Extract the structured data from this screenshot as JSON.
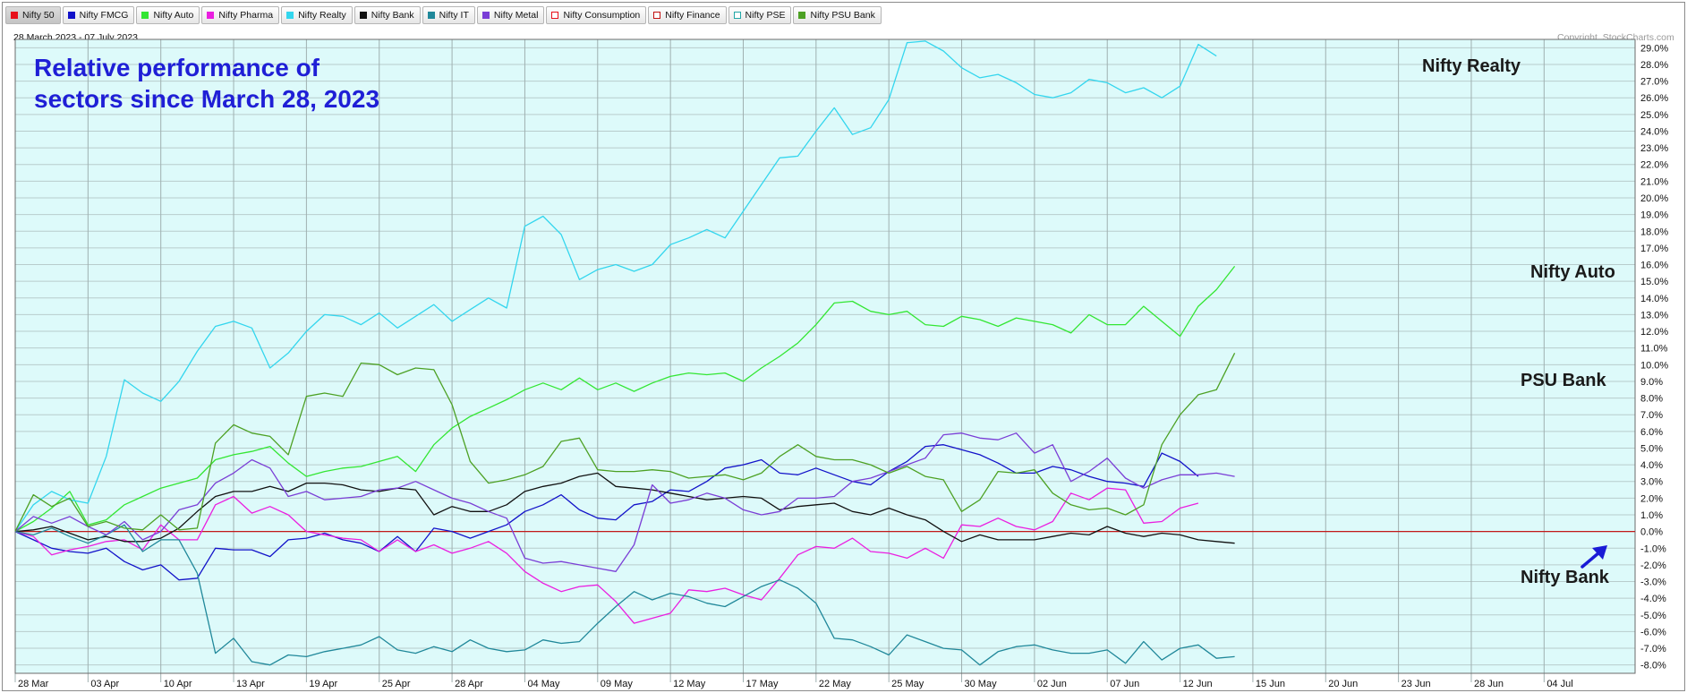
{
  "legend": [
    {
      "label": "Nifty 50",
      "color": "#e8101a",
      "style": "filled",
      "active": true
    },
    {
      "label": "Nifty FMCG",
      "color": "#1212c9",
      "style": "filled",
      "active": false
    },
    {
      "label": "Nifty Auto",
      "color": "#33e633",
      "style": "filled",
      "active": false
    },
    {
      "label": "Nifty Pharma",
      "color": "#ea1fe0",
      "style": "filled",
      "active": false
    },
    {
      "label": "Nifty Realty",
      "color": "#33d6ee",
      "style": "filled",
      "active": false
    },
    {
      "label": "Nifty Bank",
      "color": "#111111",
      "style": "filled",
      "active": false
    },
    {
      "label": "Nifty IT",
      "color": "#20889a",
      "style": "filled",
      "active": false
    },
    {
      "label": "Nifty Metal",
      "color": "#7a3ed6",
      "style": "filled",
      "active": false
    },
    {
      "label": "Nifty Consumption",
      "color": "#e8101a",
      "style": "outline",
      "active": false
    },
    {
      "label": "Nifty Finance",
      "color": "#c21010",
      "style": "outline",
      "active": false
    },
    {
      "label": "Nifty PSE",
      "color": "#20a6a6",
      "style": "outline",
      "active": false
    },
    {
      "label": "Nifty PSU Bank",
      "color": "#4da124",
      "style": "filled",
      "active": false
    }
  ],
  "date_range": "28 March 2023 - 07 July 2023",
  "copyright": "Copyright, StockCharts.com",
  "title_line1": "Relative performance of",
  "title_line2": "sectors since March 28, 2023",
  "annotations": {
    "realty": "Nifty Realty",
    "auto": "Nifty Auto",
    "psu": "PSU Bank",
    "bank": "Nifty Bank"
  },
  "colors": {
    "plot_background": "#ddfafa",
    "grid": "#b8cccc",
    "zero_line": "#c21a1a",
    "title": "#1f1fd6",
    "arrow": "#1a1ad6"
  },
  "chart_data": {
    "type": "line",
    "title": "Relative performance of sectors since March 28, 2023",
    "ylim": [
      -8.5,
      29.5
    ],
    "y_tick_step": 1.0,
    "y_tick_suffix": "%",
    "grid": true,
    "x_tick_labels": [
      "28 Mar",
      "03 Apr",
      "10 Apr",
      "13 Apr",
      "19 Apr",
      "25 Apr",
      "28 Apr",
      "04 May",
      "09 May",
      "12 May",
      "17 May",
      "22 May",
      "25 May",
      "30 May",
      "02 Jun",
      "07 Jun",
      "12 Jun",
      "15 Jun",
      "20 Jun",
      "23 Jun",
      "28 Jun",
      "04 Jul"
    ],
    "x_tick_index": [
      0,
      4,
      8,
      12,
      16,
      20,
      24,
      28,
      32,
      36,
      40,
      44,
      48,
      52,
      56,
      60,
      64,
      68,
      72,
      76,
      80,
      84
    ],
    "series": [
      {
        "name": "Nifty 50",
        "color": "#c21a1a",
        "values": [
          0,
          0,
          0,
          0,
          0,
          0,
          0,
          0,
          0,
          0,
          0,
          0,
          0,
          0,
          0,
          0,
          0,
          0,
          0,
          0,
          0,
          0,
          0,
          0,
          0,
          0,
          0,
          0,
          0,
          0,
          0,
          0,
          0,
          0,
          0,
          0,
          0,
          0,
          0,
          0,
          0,
          0,
          0,
          0,
          0,
          0,
          0,
          0,
          0,
          0,
          0,
          0,
          0,
          0,
          0,
          0,
          0,
          0,
          0,
          0,
          0,
          0,
          0,
          0,
          0,
          0,
          0,
          0,
          0,
          0,
          0,
          0,
          0,
          0,
          0,
          0,
          0,
          0,
          0,
          0,
          0,
          0,
          0,
          0,
          0,
          0,
          0,
          0,
          0,
          0
        ]
      },
      {
        "name": "Nifty FMCG",
        "color": "#1212c9",
        "values": [
          0,
          -0.5,
          -1.0,
          -1.2,
          -1.3,
          -1.0,
          -1.8,
          -2.3,
          -2.0,
          -2.9,
          -2.8,
          -1.0,
          -1.1,
          -1.1,
          -1.5,
          -0.5,
          -0.4,
          -0.1,
          -0.5,
          -0.7,
          -1.2,
          -0.3,
          -1.2,
          0.2,
          0.0,
          -0.4,
          0.0,
          0.4,
          1.2,
          1.6,
          2.2,
          1.3,
          0.8,
          0.7,
          1.6,
          1.8,
          2.5,
          2.4,
          3.0,
          3.8,
          4.0,
          4.3,
          3.5,
          3.4,
          3.8,
          3.4,
          3.0,
          2.8,
          3.6,
          4.2,
          5.1,
          5.2,
          4.9,
          4.6,
          4.1,
          3.5,
          3.5,
          3.9,
          3.7,
          3.3,
          3.0,
          2.9,
          2.7,
          4.7,
          4.2,
          3.3
        ]
      },
      {
        "name": "Nifty Auto",
        "color": "#33e633",
        "values": [
          0,
          0.6,
          1.4,
          2.4,
          0.4,
          0.7,
          1.6,
          2.1,
          2.6,
          2.9,
          3.2,
          4.3,
          4.6,
          4.8,
          5.1,
          4.1,
          3.3,
          3.6,
          3.8,
          3.9,
          4.2,
          4.5,
          3.6,
          5.2,
          6.2,
          6.9,
          7.4,
          7.9,
          8.5,
          8.9,
          8.5,
          9.2,
          8.5,
          8.9,
          8.4,
          8.9,
          9.3,
          9.5,
          9.4,
          9.5,
          9.0,
          9.8,
          10.5,
          11.3,
          12.4,
          13.7,
          13.8,
          13.2,
          13.0,
          13.2,
          12.4,
          12.3,
          12.9,
          12.7,
          12.3,
          12.8,
          12.6,
          12.4,
          11.9,
          13.0,
          12.4,
          12.4,
          13.5,
          12.6,
          11.7,
          13.5,
          14.5,
          15.9
        ]
      },
      {
        "name": "Nifty Pharma",
        "color": "#ea1fe0",
        "values": [
          0,
          -0.3,
          -1.4,
          -1.1,
          -0.9,
          -0.6,
          -0.5,
          -1.1,
          0.4,
          -0.5,
          -0.5,
          1.6,
          2.1,
          1.1,
          1.5,
          1.0,
          0.0,
          -0.2,
          -0.4,
          -0.5,
          -1.2,
          -0.5,
          -1.2,
          -0.8,
          -1.3,
          -1.0,
          -0.6,
          -1.3,
          -2.4,
          -3.1,
          -3.6,
          -3.3,
          -3.2,
          -4.2,
          -5.5,
          -5.2,
          -4.9,
          -3.5,
          -3.6,
          -3.4,
          -3.8,
          -4.1,
          -2.8,
          -1.4,
          -0.9,
          -1.0,
          -0.4,
          -1.2,
          -1.3,
          -1.6,
          -1.0,
          -1.6,
          0.4,
          0.3,
          0.8,
          0.3,
          0.1,
          0.6,
          2.3,
          1.9,
          2.6,
          2.5,
          0.5,
          0.6,
          1.4,
          1.7
        ]
      },
      {
        "name": "Nifty Realty",
        "color": "#33d6ee",
        "values": [
          0,
          1.6,
          2.4,
          1.9,
          1.7,
          4.5,
          9.1,
          8.3,
          7.8,
          9.0,
          10.8,
          12.3,
          12.6,
          12.2,
          9.8,
          10.7,
          12.0,
          13.0,
          12.9,
          12.4,
          13.1,
          12.2,
          12.9,
          13.6,
          12.6,
          13.3,
          14.0,
          13.4,
          18.3,
          18.9,
          17.8,
          15.1,
          15.7,
          16.0,
          15.6,
          16.0,
          17.2,
          17.6,
          18.1,
          17.6,
          19.2,
          20.8,
          22.4,
          22.5,
          24.0,
          25.4,
          23.8,
          24.2,
          25.9,
          29.3,
          29.4,
          28.8,
          27.8,
          27.2,
          27.4,
          26.9,
          26.2,
          26.0,
          26.3,
          27.1,
          26.9,
          26.3,
          26.6,
          26.0,
          26.7,
          29.2,
          28.5
        ]
      },
      {
        "name": "Nifty Bank",
        "color": "#111111",
        "values": [
          0,
          0.1,
          0.3,
          -0.1,
          -0.5,
          -0.3,
          -0.6,
          -0.6,
          -0.4,
          0.2,
          1.2,
          2.1,
          2.4,
          2.4,
          2.7,
          2.4,
          2.9,
          2.9,
          2.8,
          2.5,
          2.4,
          2.6,
          2.5,
          1.0,
          1.5,
          1.2,
          1.2,
          1.6,
          2.4,
          2.7,
          2.9,
          3.3,
          3.5,
          2.7,
          2.6,
          2.5,
          2.3,
          2.1,
          1.9,
          2.0,
          2.1,
          2.0,
          1.3,
          1.5,
          1.6,
          1.7,
          1.2,
          1.0,
          1.4,
          1.0,
          0.7,
          0.0,
          -0.6,
          -0.2,
          -0.5,
          -0.5,
          -0.5,
          -0.3,
          -0.1,
          -0.2,
          0.3,
          -0.1,
          -0.3,
          -0.1,
          -0.2,
          -0.5,
          -0.6,
          -0.7
        ]
      },
      {
        "name": "Nifty IT",
        "color": "#20889a",
        "values": [
          0,
          -0.2,
          0.2,
          -0.3,
          -0.7,
          -0.2,
          0.4,
          -1.2,
          -0.5,
          -0.5,
          -2.5,
          -7.3,
          -6.4,
          -7.8,
          -8.0,
          -7.4,
          -7.5,
          -7.2,
          -7.0,
          -6.8,
          -6.3,
          -7.1,
          -7.3,
          -6.9,
          -7.2,
          -6.5,
          -7.0,
          -7.2,
          -7.1,
          -6.5,
          -6.7,
          -6.6,
          -5.5,
          -4.5,
          -3.6,
          -4.1,
          -3.7,
          -3.9,
          -4.3,
          -4.5,
          -3.9,
          -3.3,
          -2.9,
          -3.4,
          -4.3,
          -6.4,
          -6.5,
          -6.9,
          -7.4,
          -6.2,
          -6.6,
          -7.0,
          -7.1,
          -8.0,
          -7.2,
          -6.9,
          -6.8,
          -7.1,
          -7.3,
          -7.3,
          -7.1,
          -7.9,
          -6.6,
          -7.7,
          -7.0,
          -6.8,
          -7.6,
          -7.5
        ]
      },
      {
        "name": "Nifty Metal",
        "color": "#7a3ed6",
        "values": [
          0,
          0.9,
          0.5,
          0.9,
          0.3,
          -0.2,
          0.6,
          -0.5,
          0.0,
          1.3,
          1.6,
          2.9,
          3.5,
          4.3,
          3.8,
          2.1,
          2.4,
          1.9,
          2.0,
          2.1,
          2.5,
          2.6,
          3.0,
          2.5,
          2.0,
          1.7,
          1.2,
          0.8,
          -1.6,
          -1.9,
          -1.8,
          -2.0,
          -2.2,
          -2.4,
          -0.8,
          2.8,
          1.7,
          1.9,
          2.3,
          2.0,
          1.3,
          1.0,
          1.2,
          2.0,
          2.0,
          2.1,
          3.0,
          3.2,
          3.6,
          4.0,
          4.4,
          5.8,
          5.9,
          5.6,
          5.5,
          5.9,
          4.7,
          5.2,
          3.0,
          3.6,
          4.4,
          3.2,
          2.6,
          3.1,
          3.4,
          3.4,
          3.5,
          3.3
        ]
      },
      {
        "name": "Nifty PSU Bank",
        "color": "#4da124",
        "values": [
          0,
          2.2,
          1.5,
          2.0,
          0.3,
          0.6,
          0.2,
          0.1,
          1.0,
          0.1,
          0.2,
          5.3,
          6.4,
          5.9,
          5.7,
          4.6,
          8.1,
          8.3,
          8.1,
          10.1,
          10.0,
          9.4,
          9.8,
          9.7,
          7.6,
          4.2,
          2.9,
          3.1,
          3.4,
          3.9,
          5.4,
          5.6,
          3.7,
          3.6,
          3.6,
          3.7,
          3.6,
          3.2,
          3.3,
          3.4,
          3.1,
          3.5,
          4.5,
          5.2,
          4.5,
          4.3,
          4.3,
          4.0,
          3.5,
          3.9,
          3.3,
          3.1,
          1.2,
          1.9,
          3.6,
          3.5,
          3.7,
          2.3,
          1.6,
          1.3,
          1.4,
          1.0,
          1.6,
          5.2,
          7.0,
          8.2,
          8.5,
          10.7
        ]
      }
    ]
  }
}
